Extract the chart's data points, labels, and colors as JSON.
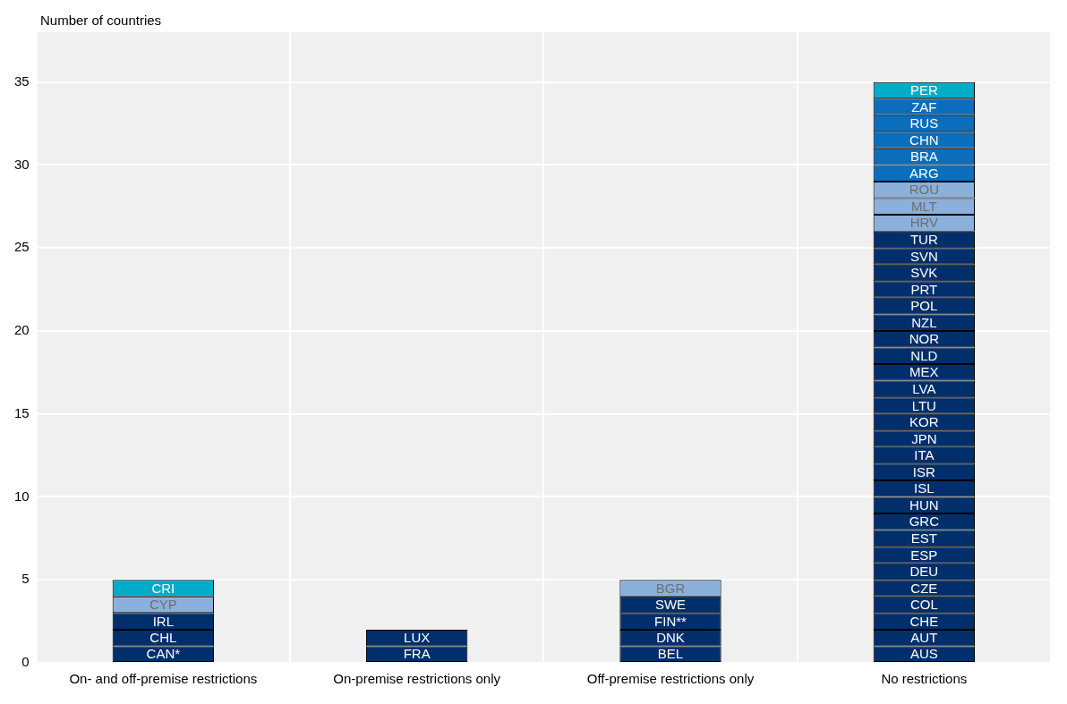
{
  "chart_data": {
    "type": "bar",
    "stacked": true,
    "ylabel": "Number of countries",
    "categories": [
      "On- and off-premise restrictions",
      "On-premise restrictions only",
      "Off-premise restrictions only",
      "No restrictions"
    ],
    "ylim": [
      0,
      38
    ],
    "yticks": [
      0,
      5,
      10,
      15,
      20,
      25,
      30,
      35
    ],
    "grid": true,
    "series": [
      {
        "values": [
          1,
          1,
          1,
          1
        ],
        "colors": [
          "#002f6c",
          "#002f6c",
          "#002f6c",
          "#002f6c"
        ],
        "value_labels": [
          "CAN*",
          "FRA",
          "BEL",
          "AUS"
        ]
      },
      {
        "values": [
          1,
          1,
          1,
          1
        ],
        "colors": [
          "#002f6c",
          "#002f6c",
          "#002f6c",
          "#002f6c"
        ],
        "value_labels": [
          "CHL",
          "LUX",
          "DNK",
          "AUT"
        ]
      },
      {
        "values": [
          1,
          null,
          1,
          1
        ],
        "colors": [
          "#002f6c",
          null,
          "#002f6c",
          "#002f6c"
        ],
        "value_labels": [
          "IRL",
          null,
          "FIN**",
          "CHE"
        ]
      },
      {
        "values": [
          1,
          null,
          1,
          1
        ],
        "colors": [
          "#8cb0dc",
          null,
          "#002f6c",
          "#002f6c"
        ],
        "value_labels": [
          "CYP",
          null,
          "SWE",
          "COL"
        ]
      },
      {
        "values": [
          1,
          null,
          1,
          1
        ],
        "colors": [
          "#00acc8",
          null,
          "#8cb0dc",
          "#002f6c"
        ],
        "value_labels": [
          "CRI",
          null,
          "BGR",
          "CZE"
        ]
      },
      {
        "values": [
          null,
          null,
          null,
          1
        ],
        "colors": [
          null,
          null,
          null,
          "#002f6c"
        ],
        "value_labels": [
          null,
          null,
          null,
          "DEU"
        ]
      },
      {
        "values": [
          null,
          null,
          null,
          1
        ],
        "colors": [
          null,
          null,
          null,
          "#002f6c"
        ],
        "value_labels": [
          null,
          null,
          null,
          "ESP"
        ]
      },
      {
        "values": [
          null,
          null,
          null,
          1
        ],
        "colors": [
          null,
          null,
          null,
          "#002f6c"
        ],
        "value_labels": [
          null,
          null,
          null,
          "EST"
        ]
      },
      {
        "values": [
          null,
          null,
          null,
          1
        ],
        "colors": [
          null,
          null,
          null,
          "#002f6c"
        ],
        "value_labels": [
          null,
          null,
          null,
          "GRC"
        ]
      },
      {
        "values": [
          null,
          null,
          null,
          1
        ],
        "colors": [
          null,
          null,
          null,
          "#002f6c"
        ],
        "value_labels": [
          null,
          null,
          null,
          "HUN"
        ]
      },
      {
        "values": [
          null,
          null,
          null,
          1
        ],
        "colors": [
          null,
          null,
          null,
          "#002f6c"
        ],
        "value_labels": [
          null,
          null,
          null,
          "ISL"
        ]
      },
      {
        "values": [
          null,
          null,
          null,
          1
        ],
        "colors": [
          null,
          null,
          null,
          "#002f6c"
        ],
        "value_labels": [
          null,
          null,
          null,
          "ISR"
        ]
      },
      {
        "values": [
          null,
          null,
          null,
          1
        ],
        "colors": [
          null,
          null,
          null,
          "#002f6c"
        ],
        "value_labels": [
          null,
          null,
          null,
          "ITA"
        ]
      },
      {
        "values": [
          null,
          null,
          null,
          1
        ],
        "colors": [
          null,
          null,
          null,
          "#002f6c"
        ],
        "value_labels": [
          null,
          null,
          null,
          "JPN"
        ]
      },
      {
        "values": [
          null,
          null,
          null,
          1
        ],
        "colors": [
          null,
          null,
          null,
          "#002f6c"
        ],
        "value_labels": [
          null,
          null,
          null,
          "KOR"
        ]
      },
      {
        "values": [
          null,
          null,
          null,
          1
        ],
        "colors": [
          null,
          null,
          null,
          "#002f6c"
        ],
        "value_labels": [
          null,
          null,
          null,
          "LTU"
        ]
      },
      {
        "values": [
          null,
          null,
          null,
          1
        ],
        "colors": [
          null,
          null,
          null,
          "#002f6c"
        ],
        "value_labels": [
          null,
          null,
          null,
          "LVA"
        ]
      },
      {
        "values": [
          null,
          null,
          null,
          1
        ],
        "colors": [
          null,
          null,
          null,
          "#002f6c"
        ],
        "value_labels": [
          null,
          null,
          null,
          "MEX"
        ]
      },
      {
        "values": [
          null,
          null,
          null,
          1
        ],
        "colors": [
          null,
          null,
          null,
          "#002f6c"
        ],
        "value_labels": [
          null,
          null,
          null,
          "NLD"
        ]
      },
      {
        "values": [
          null,
          null,
          null,
          1
        ],
        "colors": [
          null,
          null,
          null,
          "#002f6c"
        ],
        "value_labels": [
          null,
          null,
          null,
          "NOR"
        ]
      },
      {
        "values": [
          null,
          null,
          null,
          1
        ],
        "colors": [
          null,
          null,
          null,
          "#002f6c"
        ],
        "value_labels": [
          null,
          null,
          null,
          "NZL"
        ]
      },
      {
        "values": [
          null,
          null,
          null,
          1
        ],
        "colors": [
          null,
          null,
          null,
          "#002f6c"
        ],
        "value_labels": [
          null,
          null,
          null,
          "POL"
        ]
      },
      {
        "values": [
          null,
          null,
          null,
          1
        ],
        "colors": [
          null,
          null,
          null,
          "#002f6c"
        ],
        "value_labels": [
          null,
          null,
          null,
          "PRT"
        ]
      },
      {
        "values": [
          null,
          null,
          null,
          1
        ],
        "colors": [
          null,
          null,
          null,
          "#002f6c"
        ],
        "value_labels": [
          null,
          null,
          null,
          "SVK"
        ]
      },
      {
        "values": [
          null,
          null,
          null,
          1
        ],
        "colors": [
          null,
          null,
          null,
          "#002f6c"
        ],
        "value_labels": [
          null,
          null,
          null,
          "SVN"
        ]
      },
      {
        "values": [
          null,
          null,
          null,
          1
        ],
        "colors": [
          null,
          null,
          null,
          "#002f6c"
        ],
        "value_labels": [
          null,
          null,
          null,
          "TUR"
        ]
      },
      {
        "values": [
          null,
          null,
          null,
          1
        ],
        "colors": [
          null,
          null,
          null,
          "#8cb0dc"
        ],
        "value_labels": [
          null,
          null,
          null,
          "HRV"
        ]
      },
      {
        "values": [
          null,
          null,
          null,
          1
        ],
        "colors": [
          null,
          null,
          null,
          "#8cb0dc"
        ],
        "value_labels": [
          null,
          null,
          null,
          "MLT"
        ]
      },
      {
        "values": [
          null,
          null,
          null,
          1
        ],
        "colors": [
          null,
          null,
          null,
          "#8cb0dc"
        ],
        "value_labels": [
          null,
          null,
          null,
          "ROU"
        ]
      },
      {
        "values": [
          null,
          null,
          null,
          1
        ],
        "colors": [
          null,
          null,
          null,
          "#0a6ebd"
        ],
        "value_labels": [
          null,
          null,
          null,
          "ARG"
        ]
      },
      {
        "values": [
          null,
          null,
          null,
          1
        ],
        "colors": [
          null,
          null,
          null,
          "#0a6ebd"
        ],
        "value_labels": [
          null,
          null,
          null,
          "BRA"
        ]
      },
      {
        "values": [
          null,
          null,
          null,
          1
        ],
        "colors": [
          null,
          null,
          null,
          "#0a6ebd"
        ],
        "value_labels": [
          null,
          null,
          null,
          "CHN"
        ]
      },
      {
        "values": [
          null,
          null,
          null,
          1
        ],
        "colors": [
          null,
          null,
          null,
          "#0a6ebd"
        ],
        "value_labels": [
          null,
          null,
          null,
          "RUS"
        ]
      },
      {
        "values": [
          null,
          null,
          null,
          1
        ],
        "colors": [
          null,
          null,
          null,
          "#0a6ebd"
        ],
        "value_labels": [
          null,
          null,
          null,
          "ZAF"
        ]
      },
      {
        "values": [
          null,
          null,
          null,
          1
        ],
        "colors": [
          null,
          null,
          null,
          "#00acc8"
        ],
        "value_labels": [
          null,
          null,
          null,
          "PER"
        ]
      }
    ]
  }
}
